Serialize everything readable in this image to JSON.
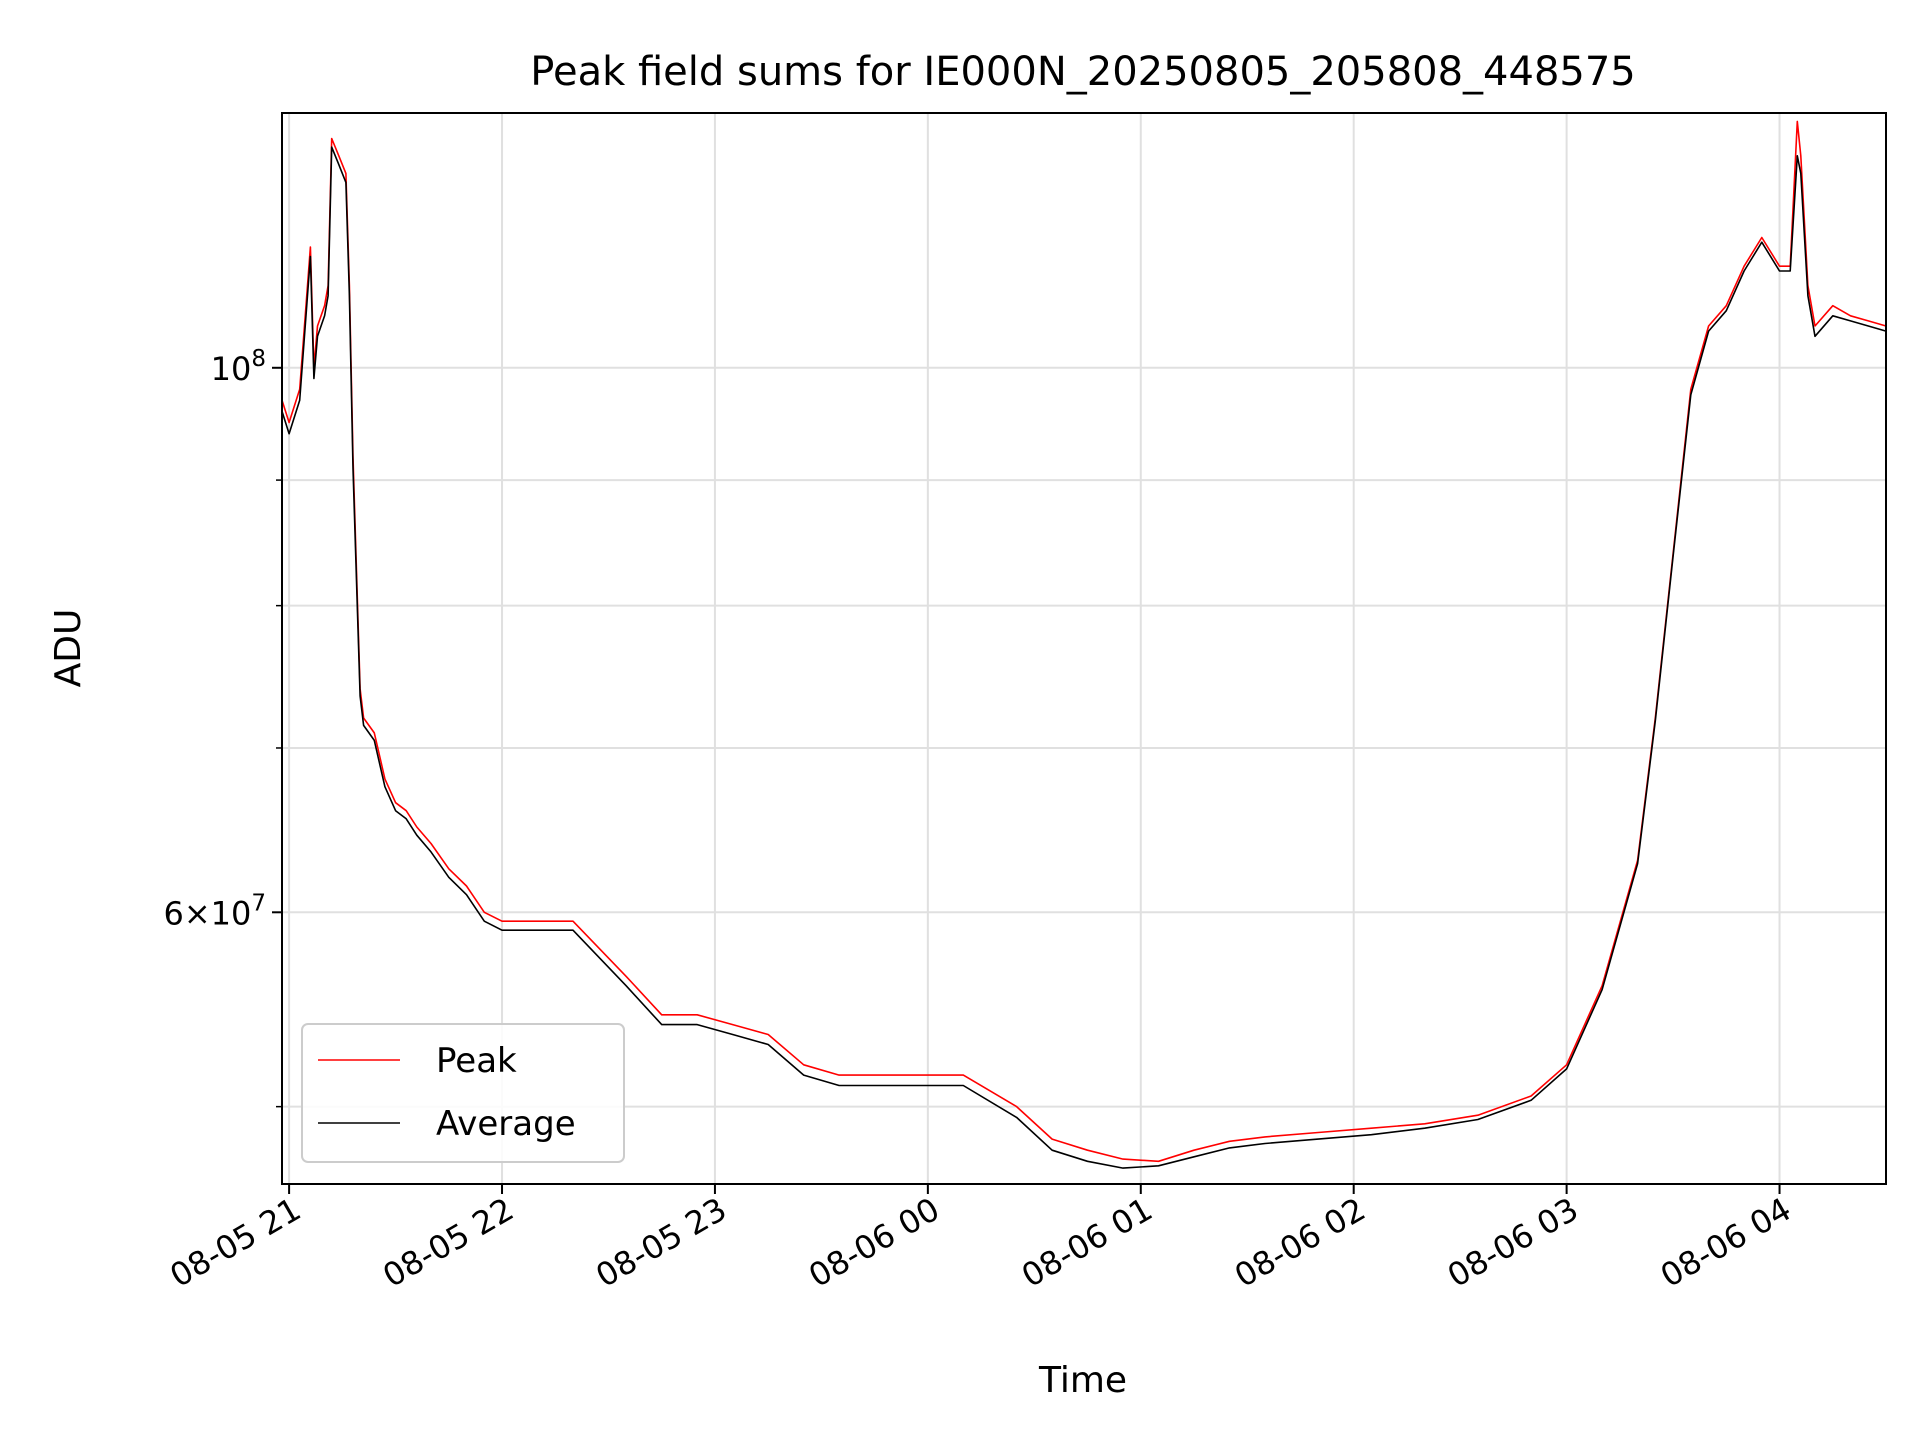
{
  "chart_data": {
    "type": "line",
    "title": "Peak field sums for IE000N_20250805_205808_448575",
    "xlabel": "Time",
    "ylabel": "ADU",
    "yscale": "log",
    "ylim": [
      46500000,
      127000000
    ],
    "xlim": [
      "2025-08-05 20:58",
      "2025-08-06 04:30"
    ],
    "x_ticks": [
      "08-05 21",
      "08-05 22",
      "08-05 23",
      "08-06 00",
      "08-06 01",
      "08-06 02",
      "08-06 03",
      "08-06 04"
    ],
    "y_ticks_major": [
      {
        "value": 100000000,
        "base": "10",
        "exp": "8"
      },
      {
        "value": 60000000,
        "mant": "6",
        "base": "10",
        "exp": "7"
      }
    ],
    "y_ticks_minor": [
      50000000,
      70000000,
      80000000,
      90000000
    ],
    "grid": true,
    "legend_position": "lower-left",
    "series": [
      {
        "name": "Peak",
        "color": "#ff0000",
        "x": [
          "2025-08-05 20:58",
          "2025-08-05 21:00",
          "2025-08-05 21:03",
          "2025-08-05 21:06",
          "2025-08-05 21:07",
          "2025-08-05 21:08",
          "2025-08-05 21:10",
          "2025-08-05 21:11",
          "2025-08-05 21:12",
          "2025-08-05 21:14",
          "2025-08-05 21:16",
          "2025-08-05 21:17",
          "2025-08-05 21:18",
          "2025-08-05 21:20",
          "2025-08-05 21:21",
          "2025-08-05 21:24",
          "2025-08-05 21:27",
          "2025-08-05 21:30",
          "2025-08-05 21:33",
          "2025-08-05 21:36",
          "2025-08-05 21:40",
          "2025-08-05 21:45",
          "2025-08-05 21:50",
          "2025-08-05 21:55",
          "2025-08-05 22:00",
          "2025-08-05 22:10",
          "2025-08-05 22:20",
          "2025-08-05 22:35",
          "2025-08-05 22:45",
          "2025-08-05 22:55",
          "2025-08-05 23:05",
          "2025-08-05 23:15",
          "2025-08-05 23:25",
          "2025-08-05 23:35",
          "2025-08-05 23:45",
          "2025-08-06 00:00",
          "2025-08-06 00:10",
          "2025-08-06 00:25",
          "2025-08-06 00:35",
          "2025-08-06 00:45",
          "2025-08-06 00:55",
          "2025-08-06 01:05",
          "2025-08-06 01:15",
          "2025-08-06 01:25",
          "2025-08-06 01:35",
          "2025-08-06 01:50",
          "2025-08-06 02:05",
          "2025-08-06 02:20",
          "2025-08-06 02:35",
          "2025-08-06 02:50",
          "2025-08-06 03:00",
          "2025-08-06 03:10",
          "2025-08-06 03:20",
          "2025-08-06 03:25",
          "2025-08-06 03:30",
          "2025-08-06 03:35",
          "2025-08-06 03:40",
          "2025-08-06 03:45",
          "2025-08-06 03:50",
          "2025-08-06 03:55",
          "2025-08-06 04:00",
          "2025-08-06 04:03",
          "2025-08-06 04:05",
          "2025-08-06 04:06",
          "2025-08-06 04:08",
          "2025-08-06 04:10",
          "2025-08-06 04:15",
          "2025-08-06 04:20",
          "2025-08-06 04:25",
          "2025-08-06 04:30"
        ],
        "values": [
          97000000,
          95000000,
          98000000,
          112000000,
          100000000,
          104000000,
          106000000,
          108000000,
          124000000,
          122000000,
          120000000,
          108000000,
          92000000,
          74000000,
          72000000,
          71000000,
          68000000,
          66500000,
          66000000,
          65000000,
          64000000,
          62500000,
          61500000,
          60000000,
          59500000,
          59500000,
          59500000,
          56500000,
          54500000,
          54500000,
          54000000,
          53500000,
          52000000,
          51500000,
          51500000,
          51500000,
          51500000,
          50000000,
          48500000,
          48000000,
          47600000,
          47500000,
          48000000,
          48400000,
          48600000,
          48800000,
          49000000,
          49200000,
          49600000,
          50500000,
          52000000,
          56000000,
          63000000,
          72000000,
          84000000,
          98000000,
          104000000,
          106000000,
          110000000,
          113000000,
          110000000,
          110000000,
          126000000,
          122000000,
          108000000,
          104000000,
          106000000,
          105000000,
          104500000,
          104000000
        ]
      },
      {
        "name": "Average",
        "color": "#000000",
        "x": [
          "2025-08-05 20:58",
          "2025-08-05 21:00",
          "2025-08-05 21:03",
          "2025-08-05 21:06",
          "2025-08-05 21:07",
          "2025-08-05 21:08",
          "2025-08-05 21:10",
          "2025-08-05 21:11",
          "2025-08-05 21:12",
          "2025-08-05 21:14",
          "2025-08-05 21:16",
          "2025-08-05 21:17",
          "2025-08-05 21:18",
          "2025-08-05 21:20",
          "2025-08-05 21:21",
          "2025-08-05 21:24",
          "2025-08-05 21:27",
          "2025-08-05 21:30",
          "2025-08-05 21:33",
          "2025-08-05 21:36",
          "2025-08-05 21:40",
          "2025-08-05 21:45",
          "2025-08-05 21:50",
          "2025-08-05 21:55",
          "2025-08-05 22:00",
          "2025-08-05 22:10",
          "2025-08-05 22:20",
          "2025-08-05 22:35",
          "2025-08-05 22:45",
          "2025-08-05 22:55",
          "2025-08-05 23:05",
          "2025-08-05 23:15",
          "2025-08-05 23:25",
          "2025-08-05 23:35",
          "2025-08-05 23:45",
          "2025-08-06 00:00",
          "2025-08-06 00:10",
          "2025-08-06 00:25",
          "2025-08-06 00:35",
          "2025-08-06 00:45",
          "2025-08-06 00:55",
          "2025-08-06 01:05",
          "2025-08-06 01:15",
          "2025-08-06 01:25",
          "2025-08-06 01:35",
          "2025-08-06 01:50",
          "2025-08-06 02:05",
          "2025-08-06 02:20",
          "2025-08-06 02:35",
          "2025-08-06 02:50",
          "2025-08-06 03:00",
          "2025-08-06 03:10",
          "2025-08-06 03:20",
          "2025-08-06 03:25",
          "2025-08-06 03:30",
          "2025-08-06 03:35",
          "2025-08-06 03:40",
          "2025-08-06 03:45",
          "2025-08-06 03:50",
          "2025-08-06 03:55",
          "2025-08-06 04:00",
          "2025-08-06 04:03",
          "2025-08-06 04:05",
          "2025-08-06 04:06",
          "2025-08-06 04:08",
          "2025-08-06 04:10",
          "2025-08-06 04:15",
          "2025-08-06 04:20",
          "2025-08-06 04:25",
          "2025-08-06 04:30"
        ],
        "values": [
          96000000,
          94000000,
          97000000,
          111000000,
          99000000,
          103000000,
          105000000,
          107000000,
          123000000,
          121000000,
          119000000,
          107000000,
          91000000,
          73500000,
          71500000,
          70500000,
          67500000,
          66000000,
          65500000,
          64500000,
          63500000,
          62000000,
          61000000,
          59500000,
          59000000,
          59000000,
          59000000,
          56000000,
          54000000,
          54000000,
          53500000,
          53000000,
          51500000,
          51000000,
          51000000,
          51000000,
          51000000,
          49500000,
          48000000,
          47500000,
          47200000,
          47300000,
          47700000,
          48100000,
          48300000,
          48500000,
          48700000,
          49000000,
          49400000,
          50300000,
          51800000,
          55800000,
          62800000,
          71800000,
          83800000,
          97500000,
          103500000,
          105500000,
          109500000,
          112500000,
          109500000,
          109500000,
          122000000,
          120000000,
          107000000,
          103000000,
          105000000,
          104500000,
          104000000,
          103500000
        ]
      }
    ]
  }
}
